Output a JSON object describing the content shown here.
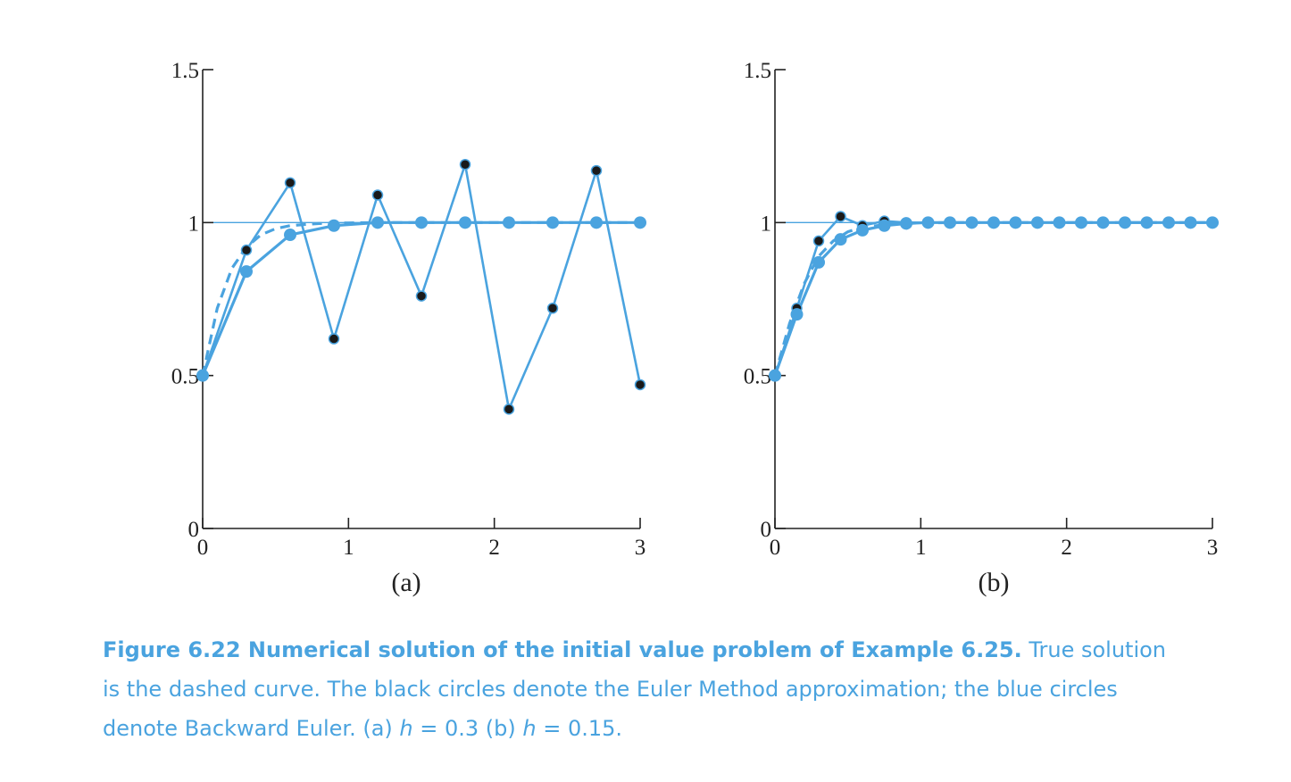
{
  "colors": {
    "curve": "#4aa3df",
    "euler_marker": "#1a1a1a",
    "axis": "#222222"
  },
  "caption": {
    "heading": "Figure 6.22 Numerical solution of the initial value problem of Example 6.25.",
    "line1": "True solution is the dashed curve. The black circles denote the Euler Method approximation; the blue circles denote Backward Euler. (a) ",
    "h_symbol_a": "h",
    "eq_a": " = 0.3  (b) ",
    "h_symbol_b": "h",
    "eq_b": " = 0.15."
  },
  "chart_data": [
    {
      "type": "line",
      "panel_label": "(a)",
      "xlim": [
        0,
        3
      ],
      "ylim": [
        0,
        1.5
      ],
      "xticks": [
        0,
        1,
        2,
        3
      ],
      "xtick_labels": [
        "0",
        "1",
        "2",
        "3"
      ],
      "yticks": [
        0,
        0.5,
        1,
        1.5
      ],
      "ytick_labels": [
        "0",
        "0.5",
        "1",
        "1.5"
      ],
      "reference_line": 1,
      "series": [
        {
          "kind": "true",
          "style": "dashed",
          "x": [
            0,
            0.1,
            0.2,
            0.3,
            0.4,
            0.5,
            0.6,
            0.8,
            1.0,
            1.2,
            1.5,
            2.0,
            2.5,
            3.0
          ],
          "y": [
            0.5,
            0.72,
            0.85,
            0.92,
            0.96,
            0.98,
            0.99,
            0.997,
            0.999,
            1.0,
            1.0,
            1.0,
            1.0,
            1.0
          ]
        },
        {
          "kind": "euler",
          "style": "black-circles",
          "x": [
            0,
            0.3,
            0.6,
            0.9,
            1.2,
            1.5,
            1.8,
            2.1,
            2.4,
            2.7,
            3.0
          ],
          "y": [
            0.5,
            0.91,
            1.13,
            0.62,
            1.09,
            0.76,
            1.19,
            0.39,
            0.72,
            1.17,
            0.47
          ]
        },
        {
          "kind": "backward_euler",
          "style": "blue-circles",
          "x": [
            0,
            0.3,
            0.6,
            0.9,
            1.2,
            1.5,
            1.8,
            2.1,
            2.4,
            2.7,
            3.0
          ],
          "y": [
            0.5,
            0.84,
            0.96,
            0.99,
            1.0,
            1.0,
            1.0,
            1.0,
            1.0,
            1.0,
            1.0
          ]
        }
      ]
    },
    {
      "type": "line",
      "panel_label": "(b)",
      "xlim": [
        0,
        3
      ],
      "ylim": [
        0,
        1.5
      ],
      "xticks": [
        0,
        1,
        2,
        3
      ],
      "xtick_labels": [
        "0",
        "1",
        "2",
        "3"
      ],
      "yticks": [
        0,
        0.5,
        1,
        1.5
      ],
      "ytick_labels": [
        "0",
        "0.5",
        "1",
        "1.5"
      ],
      "reference_line": 1,
      "series": [
        {
          "kind": "true",
          "style": "dashed",
          "x": [
            0,
            0.1,
            0.2,
            0.3,
            0.4,
            0.5,
            0.6,
            0.8,
            1.0,
            1.2,
            1.5,
            2.0,
            2.5,
            3.0
          ],
          "y": [
            0.5,
            0.67,
            0.8,
            0.89,
            0.94,
            0.97,
            0.985,
            0.995,
            0.999,
            1.0,
            1.0,
            1.0,
            1.0,
            1.0
          ]
        },
        {
          "kind": "euler",
          "style": "black-circles",
          "x": [
            0,
            0.15,
            0.3,
            0.45,
            0.6,
            0.75,
            0.9,
            1.05,
            1.2,
            1.35,
            1.5,
            1.65,
            1.8,
            1.95,
            2.1,
            2.25,
            2.4,
            2.55,
            2.7,
            2.85,
            3.0
          ],
          "y": [
            0.5,
            0.72,
            0.94,
            1.02,
            0.99,
            1.005,
            1.0,
            1.0,
            1.0,
            1.0,
            1.0,
            1.0,
            1.0,
            1.0,
            1.0,
            1.0,
            1.0,
            1.0,
            1.0,
            1.0,
            1.0
          ]
        },
        {
          "kind": "backward_euler",
          "style": "blue-circles",
          "x": [
            0,
            0.15,
            0.3,
            0.45,
            0.6,
            0.75,
            0.9,
            1.05,
            1.2,
            1.35,
            1.5,
            1.65,
            1.8,
            1.95,
            2.1,
            2.25,
            2.4,
            2.55,
            2.7,
            2.85,
            3.0
          ],
          "y": [
            0.5,
            0.7,
            0.87,
            0.945,
            0.975,
            0.99,
            0.997,
            1.0,
            1.0,
            1.0,
            1.0,
            1.0,
            1.0,
            1.0,
            1.0,
            1.0,
            1.0,
            1.0,
            1.0,
            1.0,
            1.0
          ]
        }
      ]
    }
  ]
}
